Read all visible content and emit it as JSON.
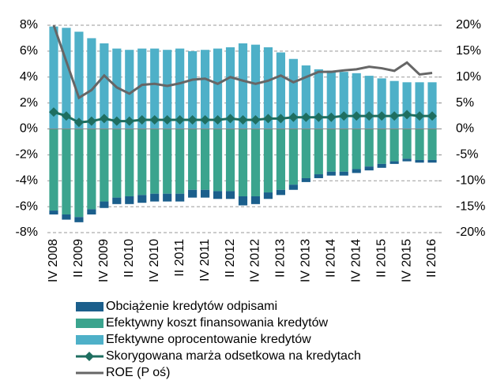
{
  "chart_data": {
    "type": "bar_line",
    "categories": [
      "IV 2008",
      null,
      "II 2009",
      null,
      "IV 2009",
      null,
      "II 2010",
      null,
      "IV 2010",
      null,
      "II 2011",
      null,
      "IV 2011",
      null,
      "II 2012",
      null,
      "IV 2012",
      null,
      "II 2013",
      null,
      "IV 2013",
      null,
      "II 2014",
      null,
      "IV 2014",
      null,
      "II 2015",
      null,
      "IV 2015",
      null,
      "II 2016"
    ],
    "ylim": [
      -8,
      8
    ],
    "yticks": [
      {
        "value": -8,
        "label": "-8%"
      },
      {
        "value": -6,
        "label": "-6%"
      },
      {
        "value": -4,
        "label": "-4%"
      },
      {
        "value": -2,
        "label": "-2%"
      },
      {
        "value": 0,
        "label": "0%"
      },
      {
        "value": 2,
        "label": "2%"
      },
      {
        "value": 4,
        "label": "4%"
      },
      {
        "value": 6,
        "label": "6%"
      },
      {
        "value": 8,
        "label": "8%"
      }
    ],
    "y2lim": [
      -20,
      20
    ],
    "y2ticks": [
      {
        "value": -20,
        "label": "-20%"
      },
      {
        "value": -15,
        "label": "-15%"
      },
      {
        "value": -10,
        "label": "-10%"
      },
      {
        "value": -5,
        "label": "-5%"
      },
      {
        "value": 0,
        "label": "0%"
      },
      {
        "value": 5,
        "label": "5%"
      },
      {
        "value": 10,
        "label": "10%"
      },
      {
        "value": 15,
        "label": "15%"
      },
      {
        "value": 20,
        "label": "20%"
      }
    ],
    "grid": true,
    "series": [
      {
        "name": "Obciążenie kredytów odpisami",
        "kind": "bar",
        "color": "#1b5f8c",
        "values": [
          -0.3,
          -0.4,
          -0.4,
          -0.4,
          -0.5,
          -0.5,
          -0.6,
          -0.6,
          -0.6,
          -0.6,
          -0.6,
          -0.6,
          -0.6,
          -0.6,
          -0.6,
          -0.7,
          -0.6,
          -0.5,
          -0.4,
          -0.4,
          -0.3,
          -0.3,
          -0.3,
          -0.3,
          -0.3,
          -0.3,
          -0.3,
          -0.2,
          -0.2,
          -0.2,
          -0.2
        ]
      },
      {
        "name": "Efektywny koszt finansowania kredytów",
        "kind": "bar",
        "color": "#3ba48e",
        "values": [
          -6.3,
          -6.6,
          -6.8,
          -6.2,
          -5.6,
          -5.3,
          -5.2,
          -5.1,
          -5.0,
          -5.0,
          -5.0,
          -4.7,
          -4.7,
          -4.8,
          -4.8,
          -5.2,
          -5.2,
          -4.9,
          -4.7,
          -4.3,
          -3.8,
          -3.5,
          -3.3,
          -3.3,
          -3.1,
          -2.9,
          -2.7,
          -2.5,
          -2.3,
          -2.4,
          -2.4
        ]
      },
      {
        "name": "Efektywne oprocentowanie kredytów",
        "kind": "bar",
        "color": "#4eb0c8",
        "values": [
          7.9,
          7.8,
          7.5,
          7.0,
          6.6,
          6.2,
          6.1,
          6.2,
          6.2,
          6.1,
          6.2,
          6.0,
          6.1,
          6.2,
          6.3,
          6.6,
          6.5,
          6.3,
          5.9,
          5.4,
          4.9,
          4.6,
          4.5,
          4.4,
          4.3,
          4.1,
          3.9,
          3.7,
          3.6,
          3.6,
          3.6
        ]
      },
      {
        "name": "Skorygowana marża odsetkowa na kredytach",
        "kind": "line",
        "marker": "diamond",
        "color": "#1e6e60",
        "values": [
          1.3,
          1.0,
          0.5,
          0.6,
          0.8,
          0.6,
          0.6,
          0.7,
          0.7,
          0.7,
          0.7,
          0.7,
          0.7,
          0.7,
          0.8,
          0.7,
          0.7,
          0.8,
          0.8,
          0.9,
          0.9,
          0.9,
          0.9,
          1.0,
          1.0,
          1.0,
          1.0,
          1.0,
          1.1,
          1.0,
          1.0
        ]
      },
      {
        "name": "ROE (P oś)",
        "kind": "line",
        "axis": "y2",
        "color": "#666666",
        "values": [
          20,
          13,
          6,
          7.5,
          10.3,
          8,
          6.8,
          8.5,
          8.7,
          8.3,
          8.8,
          9.5,
          9.7,
          8.7,
          10,
          9.3,
          8.7,
          9.3,
          10.3,
          9,
          10,
          11,
          11,
          11.3,
          11.5,
          12,
          11.7,
          11.2,
          12.8,
          10.5,
          10.8
        ]
      }
    ]
  }
}
